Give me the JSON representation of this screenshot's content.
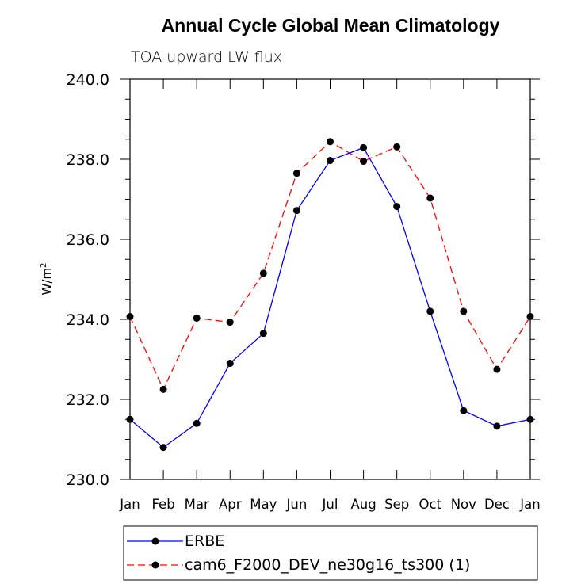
{
  "chart_data": {
    "type": "line",
    "title": "Annual Cycle Global Mean Climatology",
    "subtitle": "TOA upward LW flux",
    "ylabel": "W/m",
    "ylabel_superscript": "2",
    "xlabel": "",
    "categories": [
      "Jan",
      "Feb",
      "Mar",
      "Apr",
      "May",
      "Jun",
      "Jul",
      "Aug",
      "Sep",
      "Oct",
      "Nov",
      "Dec",
      "Jan"
    ],
    "ylim": [
      230.0,
      240.0
    ],
    "yticks": [
      "230.0",
      "232.0",
      "234.0",
      "236.0",
      "238.0",
      "240.0"
    ],
    "grid": false,
    "legend_position": "bottom",
    "series": [
      {
        "name": "ERBE",
        "color": "#0000ff",
        "line_style": "solid",
        "marker": "filled-circle",
        "values": [
          231.5,
          230.8,
          231.4,
          232.9,
          233.65,
          236.72,
          237.97,
          238.29,
          236.82,
          234.2,
          231.72,
          231.33,
          231.5
        ]
      },
      {
        "name": "cam6_F2000_DEV_ne30g16_ts300 (1)",
        "color": "#ff0000",
        "line_style": "dashed",
        "marker": "filled-circle",
        "values": [
          234.07,
          232.25,
          234.03,
          233.93,
          235.15,
          237.65,
          238.44,
          237.95,
          238.31,
          237.03,
          234.2,
          232.75,
          234.07
        ]
      }
    ]
  }
}
